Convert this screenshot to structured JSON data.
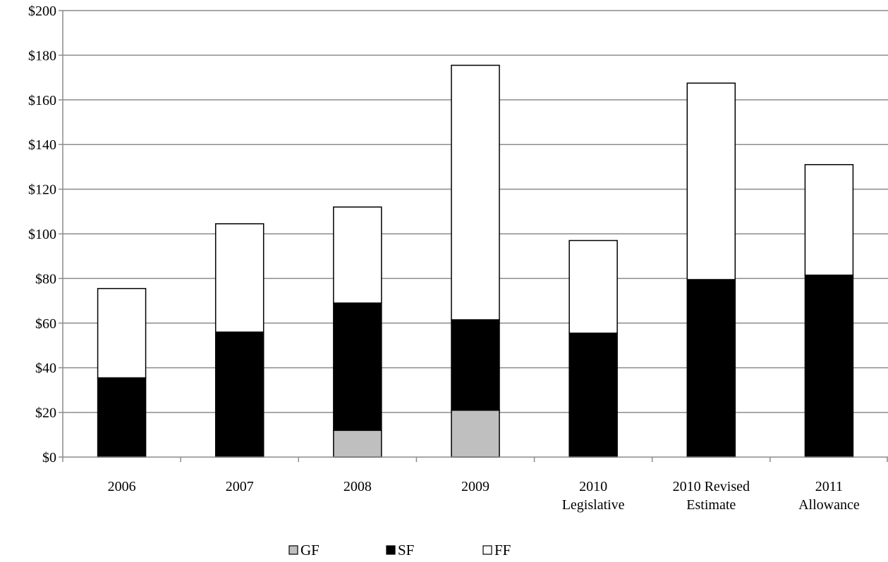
{
  "chart_data": {
    "type": "bar",
    "stacked": true,
    "title": "",
    "xlabel": "",
    "ylabel": "",
    "ylim": [
      0,
      200
    ],
    "y_ticks": [
      0,
      20,
      40,
      60,
      80,
      100,
      120,
      140,
      160,
      180,
      200
    ],
    "y_tick_labels": [
      "$0",
      "$20",
      "$40",
      "$60",
      "$80",
      "$100",
      "$120",
      "$140",
      "$160",
      "$180",
      "$200"
    ],
    "grid": true,
    "legend_position": "bottom",
    "categories": [
      [
        "2006"
      ],
      [
        "2007"
      ],
      [
        "2008"
      ],
      [
        "2009"
      ],
      [
        "2010",
        "Legislative"
      ],
      [
        "2010 Revised",
        "Estimate"
      ],
      [
        "2011",
        "Allowance"
      ]
    ],
    "series": [
      {
        "name": "GF",
        "color": "#bfbfbf",
        "values": [
          0,
          0,
          12,
          21,
          0,
          0,
          0
        ]
      },
      {
        "name": "SF",
        "color": "#000000",
        "values": [
          35.5,
          56,
          57,
          40.5,
          55.5,
          79.5,
          81.5
        ]
      },
      {
        "name": "FF",
        "color": "#ffffff",
        "values": [
          40,
          48.5,
          43,
          114,
          41.5,
          88,
          49.5
        ]
      }
    ]
  }
}
